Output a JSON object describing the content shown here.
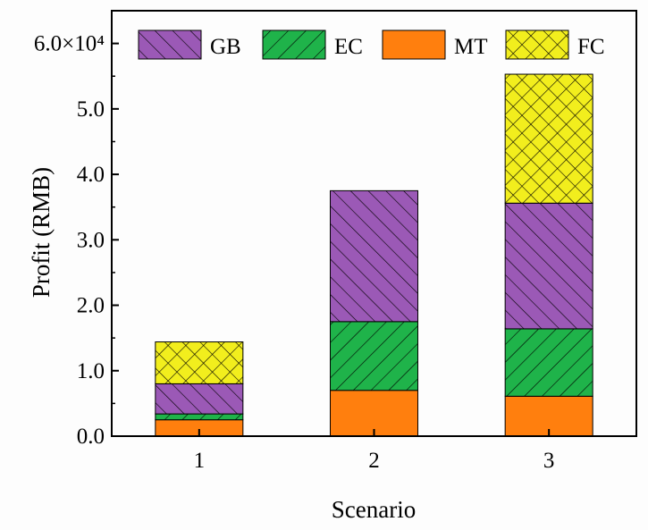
{
  "chart_data": {
    "type": "bar",
    "stacked": true,
    "title": "",
    "xlabel": "Scenario",
    "ylabel": "Profit (RMB)",
    "categories": [
      "1",
      "2",
      "3"
    ],
    "ylim": [
      0,
      65000
    ],
    "y_ticks": [
      0,
      10000,
      20000,
      30000,
      40000,
      50000,
      60000
    ],
    "y_tick_labels": [
      "0.0",
      "1.0",
      "2.0",
      "3.0",
      "4.0",
      "5.0",
      "6.0×10⁴"
    ],
    "legend_position": "top",
    "series": [
      {
        "name": "MT",
        "color": "#ff7f0e",
        "pattern": "none",
        "values": [
          2500,
          7000,
          6100
        ]
      },
      {
        "name": "EC",
        "color": "#1fb34a",
        "pattern": "forward",
        "values": [
          900,
          10500,
          10300
        ]
      },
      {
        "name": "GB",
        "color": "#9b59b6",
        "pattern": "backward",
        "values": [
          4600,
          20000,
          19200
        ]
      },
      {
        "name": "FC",
        "color": "#f2ee1d",
        "pattern": "cross",
        "values": [
          6400,
          0,
          19700
        ]
      }
    ],
    "legend_order": [
      "GB",
      "EC",
      "MT",
      "FC"
    ]
  }
}
